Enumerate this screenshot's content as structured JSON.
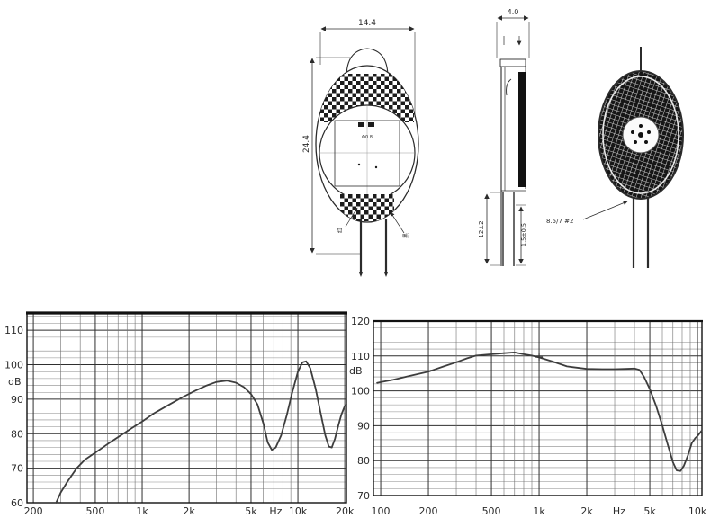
{
  "page": {
    "background": "#ffffff",
    "ink": "#2b2b2b"
  },
  "drawing": {
    "front_view": {
      "dim_width": "14.4",
      "dim_height": "24.4",
      "center_label": "Φ0.8",
      "lead_label_left": "红",
      "lead_label_right": "黑"
    },
    "side_view": {
      "dim_thickness": "4.0",
      "dim_lead_length": "12±2",
      "dim_lead_tip": "1.5±0.5"
    },
    "back_view": {
      "note": "8.5/7 #2"
    }
  },
  "chart_data": [
    {
      "type": "line",
      "name": "frequency-response-left",
      "title": "",
      "xlabel": "Hz",
      "ylabel": "dB",
      "xscale": "log",
      "xlim": [
        182,
        20500
      ],
      "ylim": [
        60,
        115
      ],
      "grid": {
        "y_minor_step": 2,
        "x_log_minor": true
      },
      "yticks": [
        {
          "v": 110,
          "label": "110"
        },
        {
          "v": 100,
          "label": "100"
        },
        {
          "v": 90,
          "label": "90"
        },
        {
          "v": 80,
          "label": "80"
        },
        {
          "v": 70,
          "label": "70"
        },
        {
          "v": 60,
          "label": "60"
        }
      ],
      "xticks": [
        {
          "f": 200,
          "label": "200"
        },
        {
          "f": 500,
          "label": "500"
        },
        {
          "f": 1000,
          "label": "1k"
        },
        {
          "f": 2000,
          "label": "2k"
        },
        {
          "f": 5000,
          "label": "5k"
        },
        {
          "f": 7200,
          "label": "Hz",
          "unit": true
        },
        {
          "f": 10000,
          "label": "10k"
        },
        {
          "f": 20000,
          "label": "20k"
        }
      ],
      "curve": [
        [
          280,
          60
        ],
        [
          300,
          63
        ],
        [
          330,
          66
        ],
        [
          360,
          68.5
        ],
        [
          380,
          70
        ],
        [
          430,
          72.5
        ],
        [
          500,
          74.5
        ],
        [
          600,
          77
        ],
        [
          700,
          79
        ],
        [
          850,
          81.5
        ],
        [
          1000,
          83.5
        ],
        [
          1200,
          86
        ],
        [
          1500,
          88.5
        ],
        [
          1800,
          90.5
        ],
        [
          2200,
          92.5
        ],
        [
          2600,
          94
        ],
        [
          3000,
          95
        ],
        [
          3500,
          95.4
        ],
        [
          4000,
          94.8
        ],
        [
          4500,
          93.5
        ],
        [
          5000,
          91.5
        ],
        [
          5500,
          88.5
        ],
        [
          6000,
          83
        ],
        [
          6400,
          77.5
        ],
        [
          6800,
          75.3
        ],
        [
          7200,
          76
        ],
        [
          7800,
          79.5
        ],
        [
          8500,
          85.5
        ],
        [
          9200,
          92
        ],
        [
          10000,
          98
        ],
        [
          10700,
          100.7
        ],
        [
          11300,
          101
        ],
        [
          12000,
          99
        ],
        [
          13000,
          93
        ],
        [
          14000,
          86
        ],
        [
          15000,
          79.5
        ],
        [
          15800,
          76.3
        ],
        [
          16500,
          76
        ],
        [
          17300,
          78.5
        ],
        [
          18200,
          82.5
        ],
        [
          19000,
          85.5
        ],
        [
          20000,
          88
        ],
        [
          20500,
          88.5
        ]
      ],
      "marker": null
    },
    {
      "type": "line",
      "name": "frequency-response-right",
      "title": "",
      "xlabel": "Hz",
      "ylabel": "dB",
      "xscale": "log",
      "xlim": [
        90,
        10670
      ],
      "ylim": [
        70,
        120
      ],
      "grid": {
        "y_minor_step": 2,
        "x_log_minor": true
      },
      "yticks": [
        {
          "v": 120,
          "label": "120"
        },
        {
          "v": 110,
          "label": "110"
        },
        {
          "v": 100,
          "label": "100"
        },
        {
          "v": 90,
          "label": "90"
        },
        {
          "v": 80,
          "label": "80"
        },
        {
          "v": 70,
          "label": "70"
        }
      ],
      "xticks": [
        {
          "f": 100,
          "label": "100"
        },
        {
          "f": 200,
          "label": "200"
        },
        {
          "f": 500,
          "label": "500"
        },
        {
          "f": 1000,
          "label": "1k"
        },
        {
          "f": 2000,
          "label": "2k"
        },
        {
          "f": 3200,
          "label": "Hz",
          "unit": true
        },
        {
          "f": 5000,
          "label": "5k"
        },
        {
          "f": 10000,
          "label": "10k"
        }
      ],
      "curve": [
        [
          95,
          102.3
        ],
        [
          100,
          102.5
        ],
        [
          120,
          103.2
        ],
        [
          150,
          104.2
        ],
        [
          200,
          105.5
        ],
        [
          250,
          107
        ],
        [
          300,
          108.2
        ],
        [
          350,
          109.3
        ],
        [
          400,
          110.1
        ],
        [
          500,
          110.5
        ],
        [
          600,
          110.8
        ],
        [
          700,
          111
        ],
        [
          800,
          110.5
        ],
        [
          900,
          110.1
        ],
        [
          1000,
          109.6
        ],
        [
          1200,
          108.5
        ],
        [
          1500,
          107
        ],
        [
          2000,
          106.3
        ],
        [
          2500,
          106.2
        ],
        [
          3000,
          106.2
        ],
        [
          3500,
          106.3
        ],
        [
          4000,
          106.4
        ],
        [
          4300,
          106
        ],
        [
          4600,
          104
        ],
        [
          5000,
          100.5
        ],
        [
          5500,
          95.5
        ],
        [
          6000,
          90
        ],
        [
          6500,
          84.5
        ],
        [
          7000,
          79.5
        ],
        [
          7400,
          77.2
        ],
        [
          7800,
          77
        ],
        [
          8200,
          78.5
        ],
        [
          8700,
          81.5
        ],
        [
          9200,
          85
        ],
        [
          9700,
          86.5
        ],
        [
          10000,
          87
        ],
        [
          10600,
          88.5
        ]
      ],
      "marker": {
        "f": 1000,
        "db": 109.7,
        "symbol": "+"
      }
    }
  ]
}
